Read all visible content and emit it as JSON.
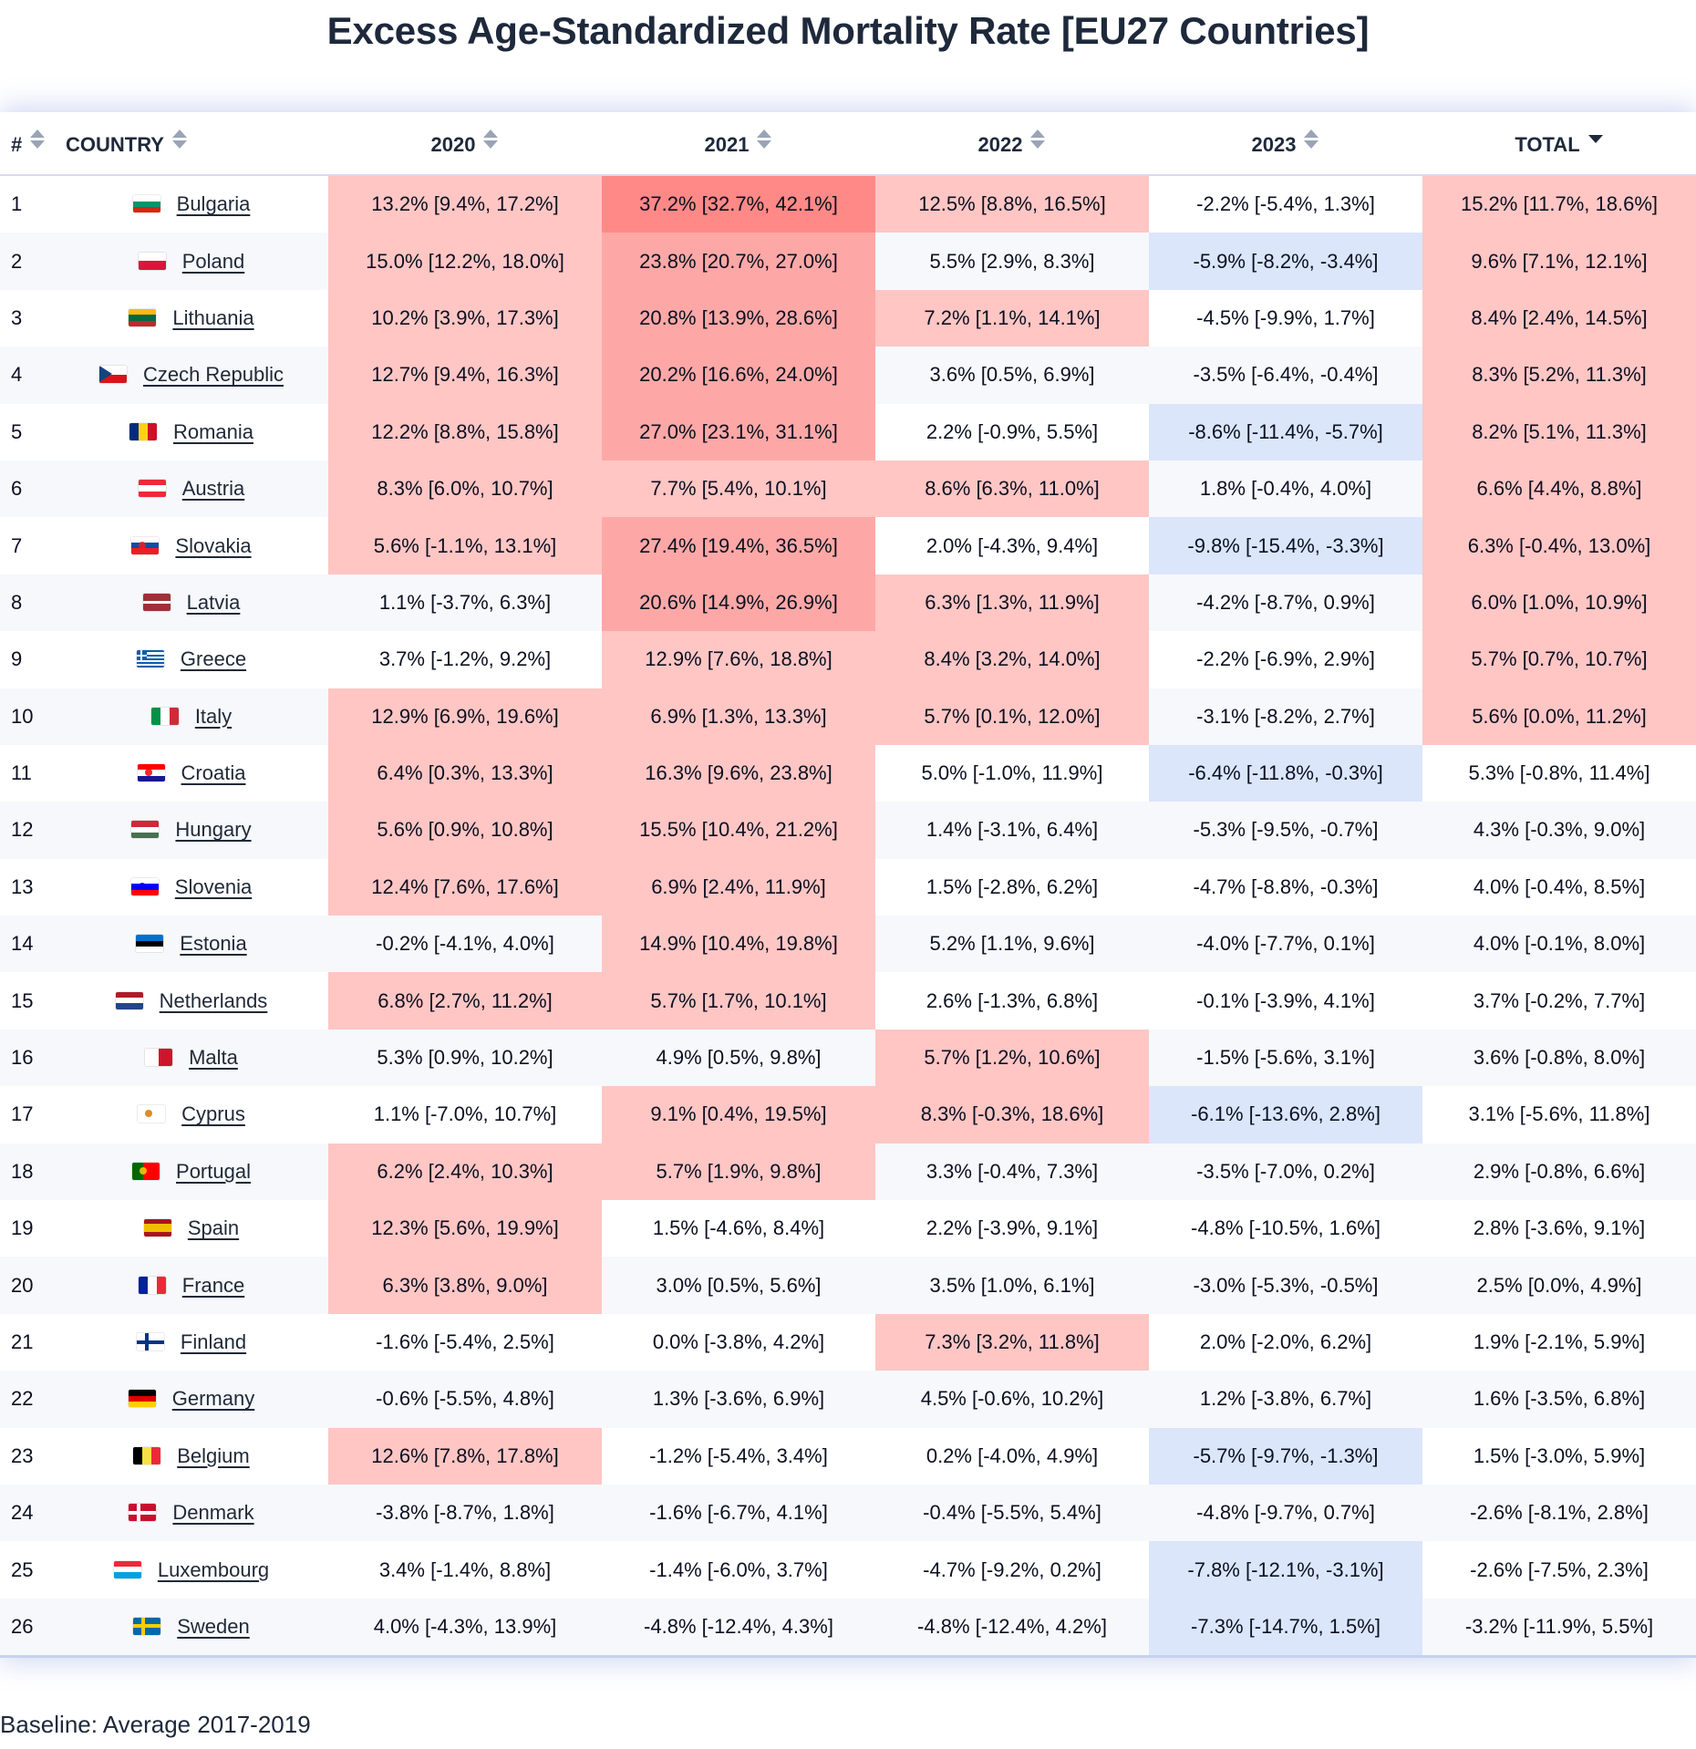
{
  "title": "Excess Age-Standardized Mortality Rate [EU27 Countries]",
  "footer": "Baseline: Average 2017-2019",
  "colors": {
    "excess_light": "#ffc6c4",
    "excess_medium": "#fda8a6",
    "excess_strong": "#ff8986",
    "deficit_light": "#dbe6fb"
  },
  "columns": [
    {
      "label": "#",
      "sort": "none"
    },
    {
      "label": "COUNTRY",
      "sort": "none"
    },
    {
      "label": "2020",
      "sort": "none"
    },
    {
      "label": "2021",
      "sort": "none"
    },
    {
      "label": "2022",
      "sort": "none"
    },
    {
      "label": "2023",
      "sort": "none"
    },
    {
      "label": "TOTAL",
      "sort": "descending"
    }
  ],
  "rows": [
    {
      "rank": "1",
      "country": "Bulgaria",
      "flag": "bulgaria-flag-icon",
      "values": [
        "13.2% [9.4%, 17.2%]",
        "37.2% [32.7%, 42.1%]",
        "12.5% [8.8%, 16.5%]",
        "-2.2% [-5.4%, 1.3%]",
        "15.2% [11.7%, 18.6%]"
      ],
      "shade": [
        "h1",
        "h3",
        "h1",
        "",
        "h1"
      ]
    },
    {
      "rank": "2",
      "country": "Poland",
      "flag": "poland-flag-icon",
      "values": [
        "15.0% [12.2%, 18.0%]",
        "23.8% [20.7%, 27.0%]",
        "5.5% [2.9%, 8.3%]",
        "-5.9% [-8.2%, -3.4%]",
        "9.6% [7.1%, 12.1%]"
      ],
      "shade": [
        "h1",
        "h2",
        "",
        "b1",
        "h1"
      ]
    },
    {
      "rank": "3",
      "country": "Lithuania",
      "flag": "lithuania-flag-icon",
      "values": [
        "10.2% [3.9%, 17.3%]",
        "20.8% [13.9%, 28.6%]",
        "7.2% [1.1%, 14.1%]",
        "-4.5% [-9.9%, 1.7%]",
        "8.4% [2.4%, 14.5%]"
      ],
      "shade": [
        "h1",
        "h2",
        "h1",
        "",
        "h1"
      ]
    },
    {
      "rank": "4",
      "country": "Czech Republic",
      "flag": "czech-republic-flag-icon",
      "values": [
        "12.7% [9.4%, 16.3%]",
        "20.2% [16.6%, 24.0%]",
        "3.6% [0.5%, 6.9%]",
        "-3.5% [-6.4%, -0.4%]",
        "8.3% [5.2%, 11.3%]"
      ],
      "shade": [
        "h1",
        "h2",
        "",
        "",
        "h1"
      ]
    },
    {
      "rank": "5",
      "country": "Romania",
      "flag": "romania-flag-icon",
      "values": [
        "12.2% [8.8%, 15.8%]",
        "27.0% [23.1%, 31.1%]",
        "2.2% [-0.9%, 5.5%]",
        "-8.6% [-11.4%, -5.7%]",
        "8.2% [5.1%, 11.3%]"
      ],
      "shade": [
        "h1",
        "h2",
        "",
        "b1",
        "h1"
      ]
    },
    {
      "rank": "6",
      "country": "Austria",
      "flag": "austria-flag-icon",
      "values": [
        "8.3% [6.0%, 10.7%]",
        "7.7% [5.4%, 10.1%]",
        "8.6% [6.3%, 11.0%]",
        "1.8% [-0.4%, 4.0%]",
        "6.6% [4.4%, 8.8%]"
      ],
      "shade": [
        "h1",
        "h1",
        "h1",
        "",
        "h1"
      ]
    },
    {
      "rank": "7",
      "country": "Slovakia",
      "flag": "slovakia-flag-icon",
      "values": [
        "5.6% [-1.1%, 13.1%]",
        "27.4% [19.4%, 36.5%]",
        "2.0% [-4.3%, 9.4%]",
        "-9.8% [-15.4%, -3.3%]",
        "6.3% [-0.4%, 13.0%]"
      ],
      "shade": [
        "h1",
        "h2",
        "",
        "b1",
        "h1"
      ]
    },
    {
      "rank": "8",
      "country": "Latvia",
      "flag": "latvia-flag-icon",
      "values": [
        "1.1% [-3.7%, 6.3%]",
        "20.6% [14.9%, 26.9%]",
        "6.3% [1.3%, 11.9%]",
        "-4.2% [-8.7%, 0.9%]",
        "6.0% [1.0%, 10.9%]"
      ],
      "shade": [
        "",
        "h2",
        "h1",
        "",
        "h1"
      ]
    },
    {
      "rank": "9",
      "country": "Greece",
      "flag": "greece-flag-icon",
      "values": [
        "3.7% [-1.2%, 9.2%]",
        "12.9% [7.6%, 18.8%]",
        "8.4% [3.2%, 14.0%]",
        "-2.2% [-6.9%, 2.9%]",
        "5.7% [0.7%, 10.7%]"
      ],
      "shade": [
        "",
        "h1",
        "h1",
        "",
        "h1"
      ]
    },
    {
      "rank": "10",
      "country": "Italy",
      "flag": "italy-flag-icon",
      "values": [
        "12.9% [6.9%, 19.6%]",
        "6.9% [1.3%, 13.3%]",
        "5.7% [0.1%, 12.0%]",
        "-3.1% [-8.2%, 2.7%]",
        "5.6% [0.0%, 11.2%]"
      ],
      "shade": [
        "h1",
        "h1",
        "h1",
        "",
        "h1"
      ]
    },
    {
      "rank": "11",
      "country": "Croatia",
      "flag": "croatia-flag-icon",
      "values": [
        "6.4% [0.3%, 13.3%]",
        "16.3% [9.6%, 23.8%]",
        "5.0% [-1.0%, 11.9%]",
        "-6.4% [-11.8%, -0.3%]",
        "5.3% [-0.8%, 11.4%]"
      ],
      "shade": [
        "h1",
        "h1",
        "",
        "b1",
        ""
      ]
    },
    {
      "rank": "12",
      "country": "Hungary",
      "flag": "hungary-flag-icon",
      "values": [
        "5.6% [0.9%, 10.8%]",
        "15.5% [10.4%, 21.2%]",
        "1.4% [-3.1%, 6.4%]",
        "-5.3% [-9.5%, -0.7%]",
        "4.3% [-0.3%, 9.0%]"
      ],
      "shade": [
        "h1",
        "h1",
        "",
        "",
        ""
      ]
    },
    {
      "rank": "13",
      "country": "Slovenia",
      "flag": "slovenia-flag-icon",
      "values": [
        "12.4% [7.6%, 17.6%]",
        "6.9% [2.4%, 11.9%]",
        "1.5% [-2.8%, 6.2%]",
        "-4.7% [-8.8%, -0.3%]",
        "4.0% [-0.4%, 8.5%]"
      ],
      "shade": [
        "h1",
        "h1",
        "",
        "",
        ""
      ]
    },
    {
      "rank": "14",
      "country": "Estonia",
      "flag": "estonia-flag-icon",
      "values": [
        "-0.2% [-4.1%, 4.0%]",
        "14.9% [10.4%, 19.8%]",
        "5.2% [1.1%, 9.6%]",
        "-4.0% [-7.7%, 0.1%]",
        "4.0% [-0.1%, 8.0%]"
      ],
      "shade": [
        "",
        "h1",
        "",
        "",
        ""
      ]
    },
    {
      "rank": "15",
      "country": "Netherlands",
      "flag": "netherlands-flag-icon",
      "values": [
        "6.8% [2.7%, 11.2%]",
        "5.7% [1.7%, 10.1%]",
        "2.6% [-1.3%, 6.8%]",
        "-0.1% [-3.9%, 4.1%]",
        "3.7% [-0.2%, 7.7%]"
      ],
      "shade": [
        "h1",
        "h1",
        "",
        "",
        ""
      ]
    },
    {
      "rank": "16",
      "country": "Malta",
      "flag": "malta-flag-icon",
      "values": [
        "5.3% [0.9%, 10.2%]",
        "4.9% [0.5%, 9.8%]",
        "5.7% [1.2%, 10.6%]",
        "-1.5% [-5.6%, 3.1%]",
        "3.6% [-0.8%, 8.0%]"
      ],
      "shade": [
        "",
        "",
        "h1",
        "",
        ""
      ]
    },
    {
      "rank": "17",
      "country": "Cyprus",
      "flag": "cyprus-flag-icon",
      "values": [
        "1.1% [-7.0%, 10.7%]",
        "9.1% [0.4%, 19.5%]",
        "8.3% [-0.3%, 18.6%]",
        "-6.1% [-13.6%, 2.8%]",
        "3.1% [-5.6%, 11.8%]"
      ],
      "shade": [
        "",
        "h1",
        "h1",
        "b1",
        ""
      ]
    },
    {
      "rank": "18",
      "country": "Portugal",
      "flag": "portugal-flag-icon",
      "values": [
        "6.2% [2.4%, 10.3%]",
        "5.7% [1.9%, 9.8%]",
        "3.3% [-0.4%, 7.3%]",
        "-3.5% [-7.0%, 0.2%]",
        "2.9% [-0.8%, 6.6%]"
      ],
      "shade": [
        "h1",
        "h1",
        "",
        "",
        ""
      ]
    },
    {
      "rank": "19",
      "country": "Spain",
      "flag": "spain-flag-icon",
      "values": [
        "12.3% [5.6%, 19.9%]",
        "1.5% [-4.6%, 8.4%]",
        "2.2% [-3.9%, 9.1%]",
        "-4.8% [-10.5%, 1.6%]",
        "2.8% [-3.6%, 9.1%]"
      ],
      "shade": [
        "h1",
        "",
        "",
        "",
        ""
      ]
    },
    {
      "rank": "20",
      "country": "France",
      "flag": "france-flag-icon",
      "values": [
        "6.3% [3.8%, 9.0%]",
        "3.0% [0.5%, 5.6%]",
        "3.5% [1.0%, 6.1%]",
        "-3.0% [-5.3%, -0.5%]",
        "2.5% [0.0%, 4.9%]"
      ],
      "shade": [
        "h1",
        "",
        "",
        "",
        ""
      ]
    },
    {
      "rank": "21",
      "country": "Finland",
      "flag": "finland-flag-icon",
      "values": [
        "-1.6% [-5.4%, 2.5%]",
        "0.0% [-3.8%, 4.2%]",
        "7.3% [3.2%, 11.8%]",
        "2.0% [-2.0%, 6.2%]",
        "1.9% [-2.1%, 5.9%]"
      ],
      "shade": [
        "",
        "",
        "h1",
        "",
        ""
      ]
    },
    {
      "rank": "22",
      "country": "Germany",
      "flag": "germany-flag-icon",
      "values": [
        "-0.6% [-5.5%, 4.8%]",
        "1.3% [-3.6%, 6.9%]",
        "4.5% [-0.6%, 10.2%]",
        "1.2% [-3.8%, 6.7%]",
        "1.6% [-3.5%, 6.8%]"
      ],
      "shade": [
        "",
        "",
        "",
        "",
        ""
      ]
    },
    {
      "rank": "23",
      "country": "Belgium",
      "flag": "belgium-flag-icon",
      "values": [
        "12.6% [7.8%, 17.8%]",
        "-1.2% [-5.4%, 3.4%]",
        "0.2% [-4.0%, 4.9%]",
        "-5.7% [-9.7%, -1.3%]",
        "1.5% [-3.0%, 5.9%]"
      ],
      "shade": [
        "h1",
        "",
        "",
        "b1",
        ""
      ]
    },
    {
      "rank": "24",
      "country": "Denmark",
      "flag": "denmark-flag-icon",
      "values": [
        "-3.8% [-8.7%, 1.8%]",
        "-1.6% [-6.7%, 4.1%]",
        "-0.4% [-5.5%, 5.4%]",
        "-4.8% [-9.7%, 0.7%]",
        "-2.6% [-8.1%, 2.8%]"
      ],
      "shade": [
        "",
        "",
        "",
        "",
        ""
      ]
    },
    {
      "rank": "25",
      "country": "Luxembourg",
      "flag": "luxembourg-flag-icon",
      "values": [
        "3.4% [-1.4%, 8.8%]",
        "-1.4% [-6.0%, 3.7%]",
        "-4.7% [-9.2%, 0.2%]",
        "-7.8% [-12.1%, -3.1%]",
        "-2.6% [-7.5%, 2.3%]"
      ],
      "shade": [
        "",
        "",
        "",
        "b1",
        ""
      ]
    },
    {
      "rank": "26",
      "country": "Sweden",
      "flag": "sweden-flag-icon",
      "values": [
        "4.0% [-4.3%, 13.9%]",
        "-4.8% [-12.4%, 4.3%]",
        "-4.8% [-12.4%, 4.2%]",
        "-7.3% [-14.7%, 1.5%]",
        "-3.2% [-11.9%, 5.5%]"
      ],
      "shade": [
        "",
        "",
        "",
        "b1",
        ""
      ]
    }
  ]
}
